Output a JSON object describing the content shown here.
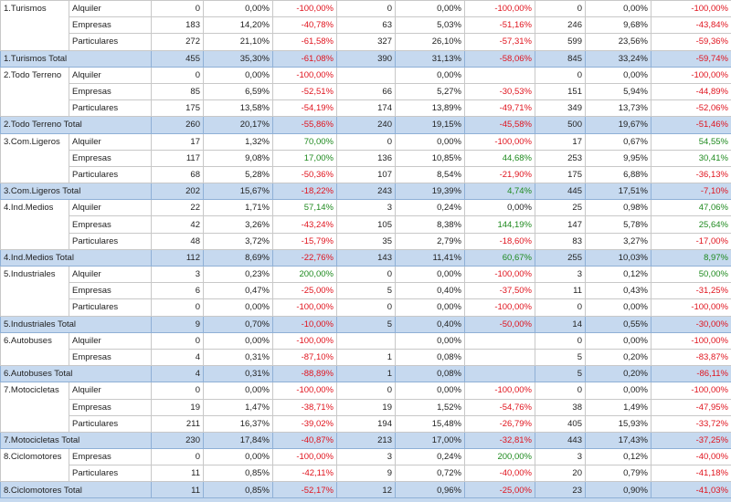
{
  "groups": [
    {
      "name": "1.Turismos",
      "rows": [
        {
          "label": "Alquiler",
          "cells": [
            "0",
            "0,00%",
            "-100,00%",
            "0",
            "0,00%",
            "-100,00%",
            "0",
            "0,00%",
            "-100,00%"
          ]
        },
        {
          "label": "Empresas",
          "cells": [
            "183",
            "14,20%",
            "-40,78%",
            "63",
            "5,03%",
            "-51,16%",
            "246",
            "9,68%",
            "-43,84%"
          ]
        },
        {
          "label": "Particulares",
          "cells": [
            "272",
            "21,10%",
            "-61,58%",
            "327",
            "26,10%",
            "-57,31%",
            "599",
            "23,56%",
            "-59,36%"
          ]
        }
      ],
      "total": {
        "label": "1.Turismos Total",
        "cells": [
          "455",
          "35,30%",
          "-61,08%",
          "390",
          "31,13%",
          "-58,06%",
          "845",
          "33,24%",
          "-59,74%"
        ]
      }
    },
    {
      "name": "2.Todo Terreno",
      "rows": [
        {
          "label": "Alquiler",
          "cells": [
            "0",
            "0,00%",
            "-100,00%",
            null,
            "0,00%",
            null,
            "0",
            "0,00%",
            "-100,00%"
          ]
        },
        {
          "label": "Empresas",
          "cells": [
            "85",
            "6,59%",
            "-52,51%",
            "66",
            "5,27%",
            "-30,53%",
            "151",
            "5,94%",
            "-44,89%"
          ]
        },
        {
          "label": "Particulares",
          "cells": [
            "175",
            "13,58%",
            "-54,19%",
            "174",
            "13,89%",
            "-49,71%",
            "349",
            "13,73%",
            "-52,06%"
          ]
        }
      ],
      "total": {
        "label": "2.Todo Terreno Total",
        "cells": [
          "260",
          "20,17%",
          "-55,86%",
          "240",
          "19,15%",
          "-45,58%",
          "500",
          "19,67%",
          "-51,46%"
        ]
      }
    },
    {
      "name": "3.Com.Ligeros",
      "rows": [
        {
          "label": "Alquiler",
          "cells": [
            "17",
            "1,32%",
            "70,00%",
            "0",
            "0,00%",
            "-100,00%",
            "17",
            "0,67%",
            "54,55%"
          ]
        },
        {
          "label": "Empresas",
          "cells": [
            "117",
            "9,08%",
            "17,00%",
            "136",
            "10,85%",
            "44,68%",
            "253",
            "9,95%",
            "30,41%"
          ]
        },
        {
          "label": "Particulares",
          "cells": [
            "68",
            "5,28%",
            "-50,36%",
            "107",
            "8,54%",
            "-21,90%",
            "175",
            "6,88%",
            "-36,13%"
          ]
        }
      ],
      "total": {
        "label": "3.Com.Ligeros Total",
        "cells": [
          "202",
          "15,67%",
          "-18,22%",
          "243",
          "19,39%",
          "4,74%",
          "445",
          "17,51%",
          "-7,10%"
        ]
      }
    },
    {
      "name": "4.Ind.Medios",
      "rows": [
        {
          "label": "Alquiler",
          "cells": [
            "22",
            "1,71%",
            "57,14%",
            "3",
            "0,24%",
            "0,00%",
            "25",
            "0,98%",
            "47,06%"
          ]
        },
        {
          "label": "Empresas",
          "cells": [
            "42",
            "3,26%",
            "-43,24%",
            "105",
            "8,38%",
            "144,19%",
            "147",
            "5,78%",
            "25,64%"
          ]
        },
        {
          "label": "Particulares",
          "cells": [
            "48",
            "3,72%",
            "-15,79%",
            "35",
            "2,79%",
            "-18,60%",
            "83",
            "3,27%",
            "-17,00%"
          ]
        }
      ],
      "total": {
        "label": "4.Ind.Medios Total",
        "cells": [
          "112",
          "8,69%",
          "-22,76%",
          "143",
          "11,41%",
          "60,67%",
          "255",
          "10,03%",
          "8,97%"
        ]
      }
    },
    {
      "name": "5.Industriales",
      "rows": [
        {
          "label": "Alquiler",
          "cells": [
            "3",
            "0,23%",
            "200,00%",
            "0",
            "0,00%",
            "-100,00%",
            "3",
            "0,12%",
            "50,00%"
          ]
        },
        {
          "label": "Empresas",
          "cells": [
            "6",
            "0,47%",
            "-25,00%",
            "5",
            "0,40%",
            "-37,50%",
            "11",
            "0,43%",
            "-31,25%"
          ]
        },
        {
          "label": "Particulares",
          "cells": [
            "0",
            "0,00%",
            "-100,00%",
            "0",
            "0,00%",
            "-100,00%",
            "0",
            "0,00%",
            "-100,00%"
          ]
        }
      ],
      "total": {
        "label": "5.Industriales Total",
        "cells": [
          "9",
          "0,70%",
          "-10,00%",
          "5",
          "0,40%",
          "-50,00%",
          "14",
          "0,55%",
          "-30,00%"
        ]
      }
    },
    {
      "name": "6.Autobuses",
      "rows": [
        {
          "label": "Alquiler",
          "cells": [
            "0",
            "0,00%",
            "-100,00%",
            null,
            "0,00%",
            null,
            "0",
            "0,00%",
            "-100,00%"
          ]
        },
        {
          "label": "Empresas",
          "cells": [
            "4",
            "0,31%",
            "-87,10%",
            "1",
            "0,08%",
            null,
            "5",
            "0,20%",
            "-83,87%"
          ]
        }
      ],
      "total": {
        "label": "6.Autobuses Total",
        "cells": [
          "4",
          "0,31%",
          "-88,89%",
          "1",
          "0,08%",
          null,
          "5",
          "0,20%",
          "-86,11%"
        ]
      }
    },
    {
      "name": "7.Motocicletas",
      "rows": [
        {
          "label": "Alquiler",
          "cells": [
            "0",
            "0,00%",
            "-100,00%",
            "0",
            "0,00%",
            "-100,00%",
            "0",
            "0,00%",
            "-100,00%"
          ]
        },
        {
          "label": "Empresas",
          "cells": [
            "19",
            "1,47%",
            "-38,71%",
            "19",
            "1,52%",
            "-54,76%",
            "38",
            "1,49%",
            "-47,95%"
          ]
        },
        {
          "label": "Particulares",
          "cells": [
            "211",
            "16,37%",
            "-39,02%",
            "194",
            "15,48%",
            "-26,79%",
            "405",
            "15,93%",
            "-33,72%"
          ]
        }
      ],
      "total": {
        "label": "7.Motocicletas Total",
        "cells": [
          "230",
          "17,84%",
          "-40,87%",
          "213",
          "17,00%",
          "-32,81%",
          "443",
          "17,43%",
          "-37,25%"
        ]
      }
    },
    {
      "name": "8.Ciclomotores",
      "rows": [
        {
          "label": "Empresas",
          "cells": [
            "0",
            "0,00%",
            "-100,00%",
            "3",
            "0,24%",
            "200,00%",
            "3",
            "0,12%",
            "-40,00%"
          ]
        },
        {
          "label": "Particulares",
          "cells": [
            "11",
            "0,85%",
            "-42,11%",
            "9",
            "0,72%",
            "-40,00%",
            "20",
            "0,79%",
            "-41,18%"
          ]
        }
      ],
      "total": {
        "label": "8.Ciclomotores Total",
        "cells": [
          "11",
          "0,85%",
          "-52,17%",
          "12",
          "0,96%",
          "-25,00%",
          "23",
          "0,90%",
          "-41,03%"
        ]
      }
    }
  ]
}
